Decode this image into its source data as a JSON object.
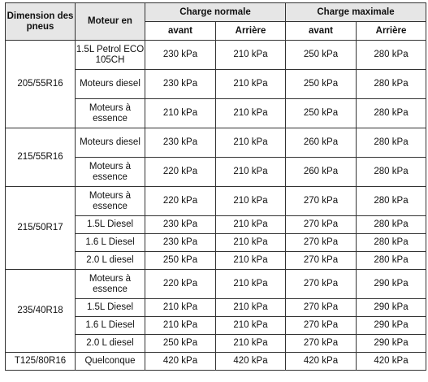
{
  "table": {
    "headers": {
      "dimension": "Dimension des pneus",
      "moteur": "Moteur en",
      "normal": "Charge normale",
      "max": "Charge maximale",
      "avant": "avant",
      "arriere": "Arrière"
    },
    "groups": [
      {
        "dimension": "205/55R16",
        "rows": [
          {
            "moteur": "1.5L Petrol ECO 105CH",
            "n_av": "230 kPa",
            "n_ar": "210 kPa",
            "m_av": "250 kPa",
            "m_ar": "280 kPa"
          },
          {
            "moteur": "Moteurs diesel",
            "n_av": "230 kPa",
            "n_ar": "210 kPa",
            "m_av": "250 kPa",
            "m_ar": "280 kPa"
          },
          {
            "moteur": "Moteurs à essence",
            "n_av": "210 kPa",
            "n_ar": "210 kPa",
            "m_av": "250 kPa",
            "m_ar": "280 kPa"
          }
        ]
      },
      {
        "dimension": "215/55R16",
        "rows": [
          {
            "moteur": "Moteurs diesel",
            "n_av": "230 kPa",
            "n_ar": "210 kPa",
            "m_av": "260 kPa",
            "m_ar": "280 kPa"
          },
          {
            "moteur": "Moteurs à essence",
            "n_av": "220 kPa",
            "n_ar": "210 kPa",
            "m_av": "260 kPa",
            "m_ar": "280 kPa"
          }
        ]
      },
      {
        "dimension": "215/50R17",
        "rows": [
          {
            "moteur": "Moteurs à essence",
            "n_av": "220 kPa",
            "n_ar": "210 kPa",
            "m_av": "270 kPa",
            "m_ar": "280 kPa"
          },
          {
            "moteur": "1.5L Diesel",
            "n_av": "230 kPa",
            "n_ar": "210 kPa",
            "m_av": "270 kPa",
            "m_ar": "280 kPa"
          },
          {
            "moteur": "1.6 L Diesel",
            "n_av": "230 kPa",
            "n_ar": "210 kPa",
            "m_av": "270 kPa",
            "m_ar": "280 kPa"
          },
          {
            "moteur": "2.0 L diesel",
            "n_av": "250 kPa",
            "n_ar": "210 kPa",
            "m_av": "270 kPa",
            "m_ar": "280 kPa"
          }
        ]
      },
      {
        "dimension": "235/40R18",
        "rows": [
          {
            "moteur": "Moteurs à essence",
            "n_av": "220 kPa",
            "n_ar": "210 kPa",
            "m_av": "270 kPa",
            "m_ar": "290 kPa"
          },
          {
            "moteur": "1.5L Diesel",
            "n_av": "210 kPa",
            "n_ar": "210 kPa",
            "m_av": "270 kPa",
            "m_ar": "290 kPa"
          },
          {
            "moteur": "1.6 L Diesel",
            "n_av": "210 kPa",
            "n_ar": "210 kPa",
            "m_av": "270 kPa",
            "m_ar": "290 kPa"
          },
          {
            "moteur": "2.0 L diesel",
            "n_av": "250 kPa",
            "n_ar": "210 kPa",
            "m_av": "270 kPa",
            "m_ar": "290 kPa"
          }
        ]
      },
      {
        "dimension": "T125/80R16",
        "rows": [
          {
            "moteur": "Quelconque",
            "n_av": "420 kPa",
            "n_ar": "420 kPa",
            "m_av": "420 kPa",
            "m_ar": "420 kPa"
          }
        ]
      }
    ]
  }
}
